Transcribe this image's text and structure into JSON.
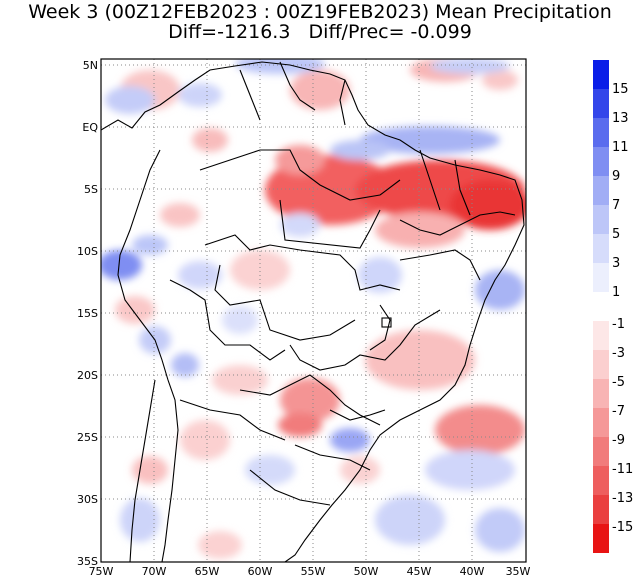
{
  "title": {
    "line1": "Week 3 (00Z12FEB2023 : 00Z19FEB2023) Mean Precipitation",
    "line2": "Diff=-1216.3   Diff/Prec= -0.099"
  },
  "map": {
    "region": "Brazil / South America",
    "lon_range": [
      -75,
      -35
    ],
    "lat_range": [
      -35,
      5
    ],
    "x_ticks": [
      "75W",
      "70W",
      "65W",
      "60W",
      "55W",
      "50W",
      "45W",
      "40W",
      "35W"
    ],
    "y_ticks": [
      "5N",
      "EQ",
      "5S",
      "10S",
      "15S",
      "20S",
      "25S",
      "30S",
      "35S"
    ]
  },
  "colorbar": {
    "positive_labels": [
      "15",
      "13",
      "11",
      "9",
      "7",
      "5",
      "3",
      "1"
    ],
    "negative_labels": [
      "-1",
      "-3",
      "-5",
      "-7",
      "-9",
      "-11",
      "-13",
      "-15"
    ],
    "positive_colors": [
      "#0a1ee8",
      "#3346ea",
      "#5a6cee",
      "#7f8ef2",
      "#a1adf5",
      "#bdc6f8",
      "#d6dcfb",
      "#eceffd"
    ],
    "negative_colors": [
      "#fde7e7",
      "#fbcfcf",
      "#f8b4b4",
      "#f59898",
      "#f17b7b",
      "#ee5e5e",
      "#ea3f3f",
      "#e81414"
    ]
  }
}
